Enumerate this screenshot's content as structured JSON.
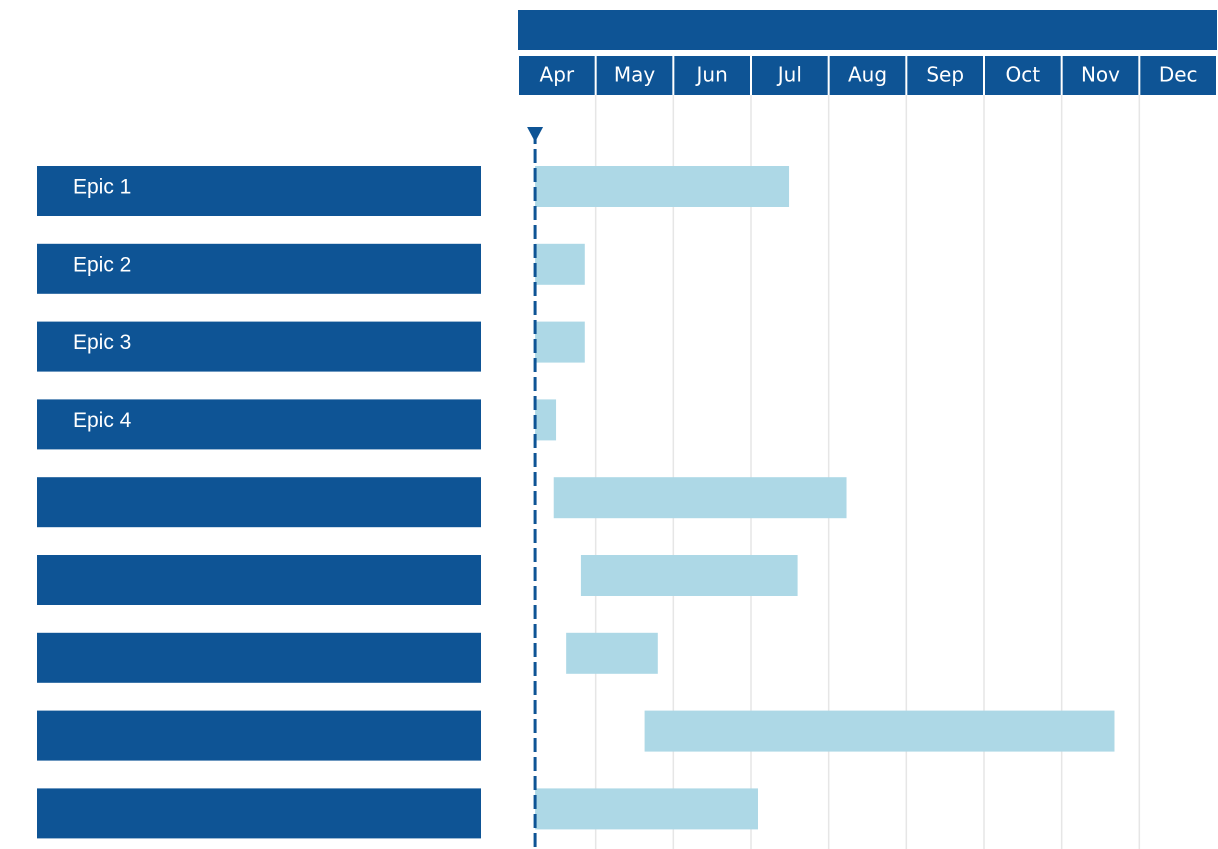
{
  "chart_data": {
    "type": "gantt",
    "xlim": [
      0,
      9
    ],
    "xticks": [
      {
        "value": 0,
        "label": "Apr"
      },
      {
        "value": 1,
        "label": "May"
      },
      {
        "value": 2,
        "label": "Jun"
      },
      {
        "value": 3,
        "label": "Jul"
      },
      {
        "value": 4,
        "label": "Aug"
      },
      {
        "value": 5,
        "label": "Sep"
      },
      {
        "value": 6,
        "label": "Oct"
      },
      {
        "value": 7,
        "label": "Nov"
      },
      {
        "value": 8,
        "label": "Dec"
      }
    ],
    "grid": true,
    "today": 0.22,
    "label_color": "#0e5495",
    "color": "#add8e6",
    "tasks": [
      {
        "name": "Epic 1",
        "start": 0.22,
        "end": 3.49
      },
      {
        "name": "Epic 2",
        "start": 0.22,
        "end": 0.86
      },
      {
        "name": "Epic 3",
        "start": 0.22,
        "end": 0.86
      },
      {
        "name": "Epic 4",
        "start": 0.22,
        "end": 0.49
      },
      {
        "name": null,
        "start": 0.46,
        "end": 4.23
      },
      {
        "name": null,
        "start": 0.81,
        "end": 3.6
      },
      {
        "name": null,
        "start": 0.62,
        "end": 1.8
      },
      {
        "name": null,
        "start": 1.63,
        "end": 7.68
      },
      {
        "name": null,
        "start": 0.22,
        "end": 3.09
      }
    ]
  }
}
